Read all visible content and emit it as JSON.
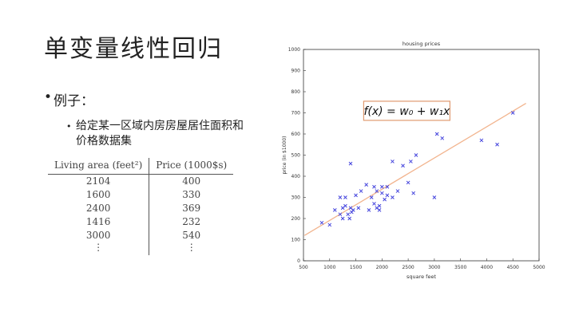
{
  "slide": {
    "title": "单变量线性回归",
    "bullet1": "例子：",
    "bullet2": "给定某一区域内房房屋居住面积和价格数据集"
  },
  "table": {
    "headers": [
      "Living area (feet²)",
      "Price (1000$s)"
    ],
    "rows": [
      [
        "2104",
        "400"
      ],
      [
        "1600",
        "330"
      ],
      [
        "2400",
        "369"
      ],
      [
        "1416",
        "232"
      ],
      [
        "3000",
        "540"
      ]
    ],
    "ellipsis": [
      "⋮",
      "⋮"
    ]
  },
  "chart_data": {
    "type": "scatter",
    "title": "housing prices",
    "xlabel": "square feet",
    "ylabel": "price (in $1000)",
    "xlim": [
      500,
      5000
    ],
    "ylim": [
      0,
      1000
    ],
    "xticks": [
      500,
      1000,
      1500,
      2000,
      2500,
      3000,
      3500,
      4000,
      4500,
      5000
    ],
    "yticks": [
      0,
      100,
      200,
      300,
      400,
      500,
      600,
      700,
      800,
      900,
      1000
    ],
    "marker": "x",
    "marker_color": "#4444dd",
    "fit_line_color": "#f2b48e",
    "formula": "f(x) = w₀ + w₁x",
    "fit_line": {
      "x": [
        520,
        4750
      ],
      "y": [
        120,
        745
      ]
    },
    "x": [
      850,
      1000,
      1100,
      1200,
      1200,
      1250,
      1250,
      1300,
      1300,
      1350,
      1380,
      1400,
      1400,
      1420,
      1450,
      1500,
      1550,
      1600,
      1700,
      1750,
      1800,
      1850,
      1850,
      1900,
      1900,
      1950,
      1950,
      2000,
      2000,
      2050,
      2100,
      2100,
      2200,
      2200,
      2300,
      2400,
      2500,
      2550,
      2600,
      2650,
      3000,
      3050,
      3150,
      3900,
      4200,
      4500
    ],
    "y": [
      180,
      170,
      240,
      300,
      220,
      250,
      200,
      300,
      260,
      220,
      200,
      460,
      250,
      230,
      240,
      310,
      250,
      330,
      360,
      240,
      300,
      350,
      270,
      330,
      250,
      240,
      260,
      320,
      350,
      290,
      310,
      350,
      300,
      470,
      330,
      450,
      370,
      470,
      320,
      500,
      300,
      600,
      580,
      570,
      550,
      700
    ]
  }
}
